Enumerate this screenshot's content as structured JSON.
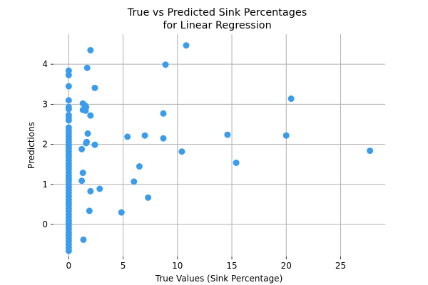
{
  "chart_data": {
    "type": "scatter",
    "title_line1": "True vs Predicted Sink Percentages",
    "title_line2": "for Linear Regression",
    "xlabel": "True Values (Sink Percentage)",
    "ylabel": "Predictions",
    "xlim": [
      -1.4,
      29.1
    ],
    "ylim": [
      -0.8,
      4.75
    ],
    "xticks": [
      0,
      5,
      10,
      15,
      20,
      25
    ],
    "yticks": [
      0,
      1,
      2,
      3,
      4
    ],
    "grid": true,
    "marker_color": "#3b9cec",
    "points": [
      [
        0,
        3.84
      ],
      [
        0,
        3.73
      ],
      [
        0,
        3.45
      ],
      [
        0,
        3.1
      ],
      [
        0,
        2.93
      ],
      [
        0,
        2.88
      ],
      [
        0,
        2.73
      ],
      [
        0,
        2.67
      ],
      [
        0,
        2.6
      ],
      [
        0,
        2.42
      ],
      [
        0,
        2.35
      ],
      [
        0,
        2.28
      ],
      [
        0,
        2.2
      ],
      [
        0,
        2.12
      ],
      [
        0,
        2.05
      ],
      [
        0,
        1.97
      ],
      [
        0,
        1.9
      ],
      [
        0,
        1.82
      ],
      [
        0,
        1.75
      ],
      [
        0,
        1.68
      ],
      [
        0,
        1.6
      ],
      [
        0,
        1.52
      ],
      [
        0,
        1.45
      ],
      [
        0,
        1.38
      ],
      [
        0,
        1.3
      ],
      [
        0,
        1.22
      ],
      [
        0,
        1.15
      ],
      [
        0,
        1.08
      ],
      [
        0,
        1.0
      ],
      [
        0,
        0.93
      ],
      [
        0,
        0.86
      ],
      [
        0,
        0.78
      ],
      [
        0,
        0.7
      ],
      [
        0,
        0.62
      ],
      [
        0,
        0.55
      ],
      [
        0,
        0.48
      ],
      [
        0,
        0.4
      ],
      [
        0,
        0.33
      ],
      [
        0,
        0.25
      ],
      [
        0,
        0.18
      ],
      [
        0,
        0.1
      ],
      [
        0,
        0.03
      ],
      [
        0,
        -0.05
      ],
      [
        0,
        -0.12
      ],
      [
        0,
        -0.2
      ],
      [
        0,
        -0.27
      ],
      [
        0,
        -0.35
      ],
      [
        0,
        -0.42
      ],
      [
        0,
        -0.5
      ],
      [
        0,
        -0.58
      ],
      [
        0,
        -0.66
      ],
      [
        2.0,
        4.35
      ],
      [
        1.7,
        3.91
      ],
      [
        2.4,
        3.41
      ],
      [
        1.3,
        3.02
      ],
      [
        1.5,
        2.97
      ],
      [
        1.6,
        2.93
      ],
      [
        1.4,
        2.88
      ],
      [
        1.3,
        2.86
      ],
      [
        1.55,
        2.84
      ],
      [
        2.0,
        2.72
      ],
      [
        1.75,
        2.27
      ],
      [
        1.65,
        2.06
      ],
      [
        1.6,
        2.03
      ],
      [
        2.4,
        1.99
      ],
      [
        1.2,
        1.88
      ],
      [
        1.3,
        1.29
      ],
      [
        1.2,
        1.09
      ],
      [
        2.0,
        0.83
      ],
      [
        2.85,
        0.89
      ],
      [
        1.9,
        0.34
      ],
      [
        1.35,
        -0.38
      ],
      [
        10.8,
        4.47
      ],
      [
        8.9,
        3.99
      ],
      [
        20.45,
        3.14
      ],
      [
        8.7,
        2.77
      ],
      [
        5.4,
        2.19
      ],
      [
        7.0,
        2.22
      ],
      [
        8.7,
        2.15
      ],
      [
        14.6,
        2.24
      ],
      [
        20.0,
        2.22
      ],
      [
        10.4,
        1.82
      ],
      [
        15.4,
        1.54
      ],
      [
        27.7,
        1.84
      ],
      [
        6.5,
        1.45
      ],
      [
        6.0,
        1.07
      ],
      [
        7.3,
        0.67
      ],
      [
        4.85,
        0.3
      ]
    ]
  }
}
